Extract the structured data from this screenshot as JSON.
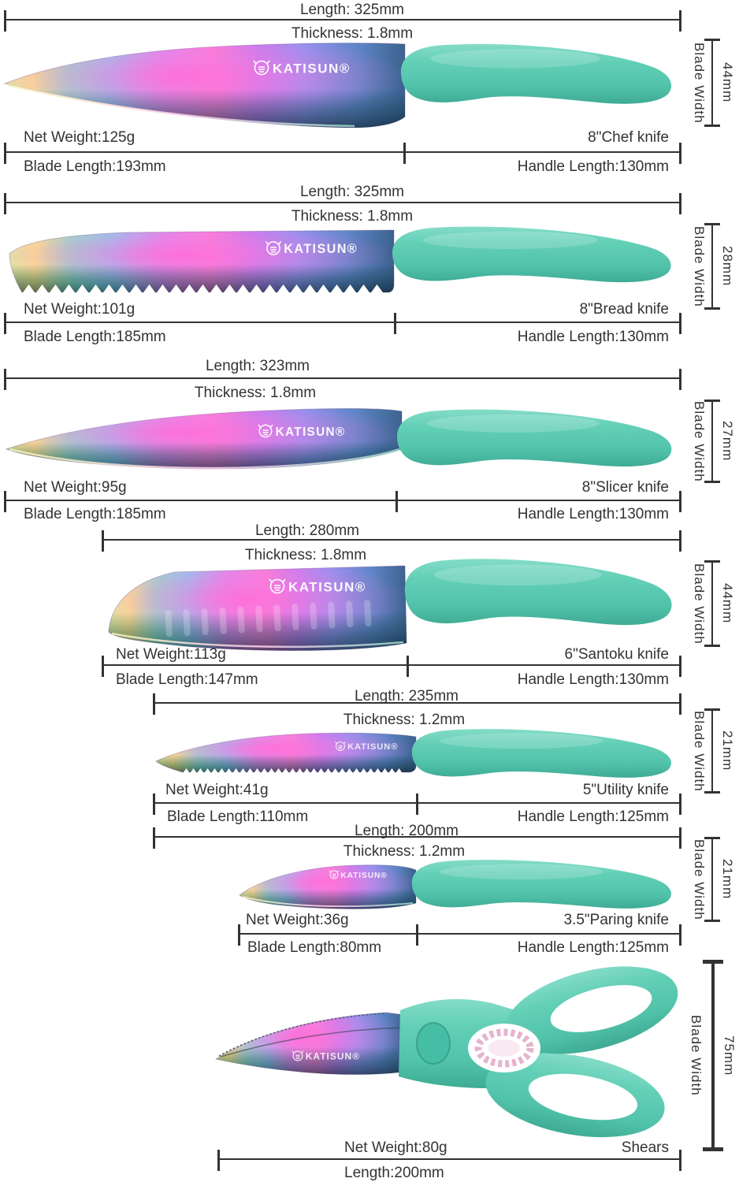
{
  "brand": {
    "logo": "KATISUN®"
  },
  "colors": {
    "handle": "#5ecdb5",
    "annotation": "#333333",
    "blade_rainbow": [
      "#f9ed86",
      "#8ce8c8",
      "#7fd4f2",
      "#f97fd8",
      "#c07ef2",
      "#3c628f"
    ]
  },
  "knives": [
    {
      "name": "8\"Chef knife",
      "length": "Length: 325mm",
      "thickness": "Thickness: 1.8mm",
      "net_weight": "Net Weight:125g",
      "blade_length": "Blade Length:193mm",
      "handle_length": "Handle Length:130mm",
      "blade_width_label": "Blade Width",
      "blade_width": "44mm"
    },
    {
      "name": "8\"Bread knife",
      "length": "Length: 325mm",
      "thickness": "Thickness: 1.8mm",
      "net_weight": "Net Weight:101g",
      "blade_length": "Blade Length:185mm",
      "handle_length": "Handle Length:130mm",
      "blade_width_label": "Blade Width",
      "blade_width": "28mm"
    },
    {
      "name": "8\"Slicer knife",
      "length": "Length: 323mm",
      "thickness": "Thickness: 1.8mm",
      "net_weight": "Net Weight:95g",
      "blade_length": "Blade Length:185mm",
      "handle_length": "Handle Length:130mm",
      "blade_width_label": "Blade Width",
      "blade_width": "27mm"
    },
    {
      "name": "6\"Santoku knife",
      "length": "Length: 280mm",
      "thickness": "Thickness: 1.8mm",
      "net_weight": "Net Weight:113g",
      "blade_length": "Blade Length:147mm",
      "handle_length": "Handle Length:130mm",
      "blade_width_label": "Blade Width",
      "blade_width": "44mm"
    },
    {
      "name": "5\"Utility knife",
      "length": "Length: 235mm",
      "thickness": "Thickness: 1.2mm",
      "net_weight": "Net Weight:41g",
      "blade_length": "Blade Length:110mm",
      "handle_length": "Handle Length:125mm",
      "blade_width_label": "Blade Width",
      "blade_width": "21mm"
    },
    {
      "name": "3.5\"Paring knife",
      "length": "Length: 200mm",
      "thickness": "Thickness: 1.2mm",
      "net_weight": "Net Weight:36g",
      "blade_length": "Blade Length:80mm",
      "handle_length": "Handle Length:125mm",
      "blade_width_label": "Blade Width",
      "blade_width": "21mm"
    }
  ],
  "shears": {
    "name": "Shears",
    "net_weight": "Net Weight:80g",
    "length": "Length:200mm",
    "blade_width_label": "Blade Width",
    "blade_width": "75mm"
  }
}
